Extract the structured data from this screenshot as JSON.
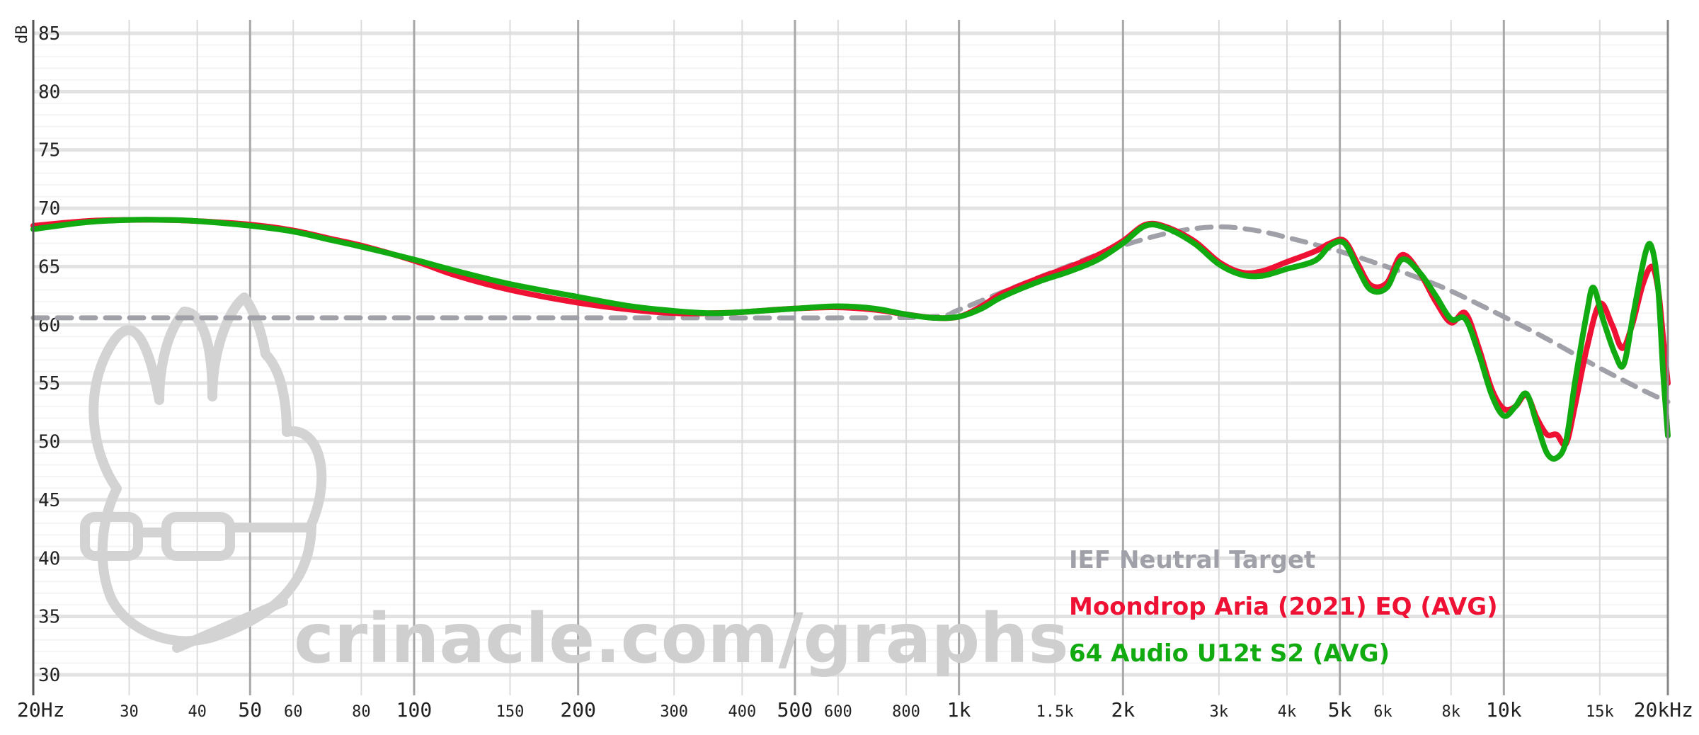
{
  "chart_data": {
    "type": "line",
    "title": "",
    "xlabel": "",
    "ylabel": "dB",
    "x_scale": "log",
    "xlim": [
      20,
      20000
    ],
    "ylim": [
      29,
      86
    ],
    "grid": true,
    "legend_position": "bottom-right",
    "y_ticks": [
      "85",
      "80",
      "75",
      "70",
      "65",
      "60",
      "55",
      "50",
      "45",
      "40",
      "35",
      "30"
    ],
    "x_ticks": [
      {
        "f": 20,
        "label": "20Hz",
        "major": true
      },
      {
        "f": 30,
        "label": "30",
        "major": false
      },
      {
        "f": 40,
        "label": "40",
        "major": false
      },
      {
        "f": 50,
        "label": "50",
        "major": true
      },
      {
        "f": 60,
        "label": "60",
        "major": false
      },
      {
        "f": 80,
        "label": "80",
        "major": false
      },
      {
        "f": 100,
        "label": "100",
        "major": true
      },
      {
        "f": 150,
        "label": "150",
        "major": false
      },
      {
        "f": 200,
        "label": "200",
        "major": true
      },
      {
        "f": 300,
        "label": "300",
        "major": false
      },
      {
        "f": 400,
        "label": "400",
        "major": false
      },
      {
        "f": 500,
        "label": "500",
        "major": true
      },
      {
        "f": 600,
        "label": "600",
        "major": false
      },
      {
        "f": 800,
        "label": "800",
        "major": false
      },
      {
        "f": 1000,
        "label": "1k",
        "major": true
      },
      {
        "f": 1500,
        "label": "1.5k",
        "major": false
      },
      {
        "f": 2000,
        "label": "2k",
        "major": true
      },
      {
        "f": 3000,
        "label": "3k",
        "major": false
      },
      {
        "f": 4000,
        "label": "4k",
        "major": false
      },
      {
        "f": 5000,
        "label": "5k",
        "major": true
      },
      {
        "f": 6000,
        "label": "6k",
        "major": false
      },
      {
        "f": 8000,
        "label": "8k",
        "major": false
      },
      {
        "f": 10000,
        "label": "10k",
        "major": true
      },
      {
        "f": 15000,
        "label": "15k",
        "major": false
      },
      {
        "f": 20000,
        "label": "20kHz",
        "major": true
      }
    ],
    "series": [
      {
        "name": "IEF Neutral Target",
        "color": "#a0a0a8",
        "dashed": true,
        "points": [
          [
            20,
            60.6
          ],
          [
            100,
            60.6
          ],
          [
            300,
            60.6
          ],
          [
            600,
            60.6
          ],
          [
            900,
            60.7
          ],
          [
            1000,
            61.3
          ],
          [
            1200,
            62.8
          ],
          [
            1500,
            64.6
          ],
          [
            2000,
            66.8
          ],
          [
            2500,
            68.0
          ],
          [
            3000,
            68.4
          ],
          [
            3500,
            68.1
          ],
          [
            4000,
            67.5
          ],
          [
            5000,
            66.3
          ],
          [
            6000,
            65.1
          ],
          [
            7000,
            64.0
          ],
          [
            8000,
            62.9
          ],
          [
            10000,
            60.7
          ],
          [
            12000,
            58.8
          ],
          [
            15000,
            56.3
          ],
          [
            18000,
            54.4
          ],
          [
            20000,
            53.4
          ]
        ]
      },
      {
        "name": "Moondrop Aria (2021) EQ (AVG)",
        "color": "#ee1133",
        "dashed": false,
        "points": [
          [
            20,
            68.5
          ],
          [
            25,
            68.9
          ],
          [
            30,
            69.0
          ],
          [
            35,
            69.0
          ],
          [
            40,
            68.9
          ],
          [
            50,
            68.6
          ],
          [
            60,
            68.1
          ],
          [
            70,
            67.4
          ],
          [
            80,
            66.8
          ],
          [
            100,
            65.5
          ],
          [
            120,
            64.2
          ],
          [
            150,
            63.0
          ],
          [
            200,
            61.9
          ],
          [
            250,
            61.3
          ],
          [
            300,
            61.0
          ],
          [
            350,
            61.0
          ],
          [
            400,
            61.1
          ],
          [
            500,
            61.4
          ],
          [
            600,
            61.5
          ],
          [
            700,
            61.3
          ],
          [
            800,
            60.9
          ],
          [
            900,
            60.6
          ],
          [
            1000,
            60.7
          ],
          [
            1100,
            61.6
          ],
          [
            1200,
            62.7
          ],
          [
            1400,
            64.0
          ],
          [
            1600,
            65.0
          ],
          [
            1800,
            66.0
          ],
          [
            2000,
            67.2
          ],
          [
            2200,
            68.6
          ],
          [
            2400,
            68.4
          ],
          [
            2700,
            67.2
          ],
          [
            3000,
            65.4
          ],
          [
            3300,
            64.5
          ],
          [
            3600,
            64.6
          ],
          [
            4000,
            65.4
          ],
          [
            4500,
            66.3
          ],
          [
            4800,
            67.0
          ],
          [
            5100,
            67.2
          ],
          [
            5400,
            65.2
          ],
          [
            5700,
            63.4
          ],
          [
            6100,
            63.6
          ],
          [
            6500,
            66.0
          ],
          [
            7000,
            64.5
          ],
          [
            7500,
            62.0
          ],
          [
            8000,
            60.2
          ],
          [
            8500,
            61.0
          ],
          [
            9000,
            58.0
          ],
          [
            9500,
            54.5
          ],
          [
            10000,
            52.8
          ],
          [
            10500,
            53.0
          ],
          [
            11000,
            54.0
          ],
          [
            11500,
            52.0
          ],
          [
            12000,
            50.6
          ],
          [
            12500,
            50.6
          ],
          [
            13000,
            49.8
          ],
          [
            13500,
            53.0
          ],
          [
            14200,
            58.0
          ],
          [
            15000,
            61.8
          ],
          [
            15800,
            60.0
          ],
          [
            16500,
            58.0
          ],
          [
            17200,
            60.0
          ],
          [
            18000,
            63.5
          ],
          [
            18700,
            65.0
          ],
          [
            19200,
            63.0
          ],
          [
            19600,
            59.0
          ],
          [
            20000,
            55.0
          ]
        ]
      },
      {
        "name": "64 Audio U12t S2 (AVG)",
        "color": "#11aa11",
        "dashed": false,
        "points": [
          [
            20,
            68.2
          ],
          [
            25,
            68.8
          ],
          [
            30,
            69.0
          ],
          [
            35,
            69.0
          ],
          [
            40,
            68.9
          ],
          [
            50,
            68.5
          ],
          [
            60,
            68.0
          ],
          [
            70,
            67.3
          ],
          [
            80,
            66.7
          ],
          [
            100,
            65.6
          ],
          [
            120,
            64.6
          ],
          [
            150,
            63.5
          ],
          [
            200,
            62.4
          ],
          [
            250,
            61.6
          ],
          [
            300,
            61.2
          ],
          [
            350,
            61.0
          ],
          [
            400,
            61.1
          ],
          [
            500,
            61.4
          ],
          [
            600,
            61.6
          ],
          [
            700,
            61.4
          ],
          [
            800,
            60.9
          ],
          [
            900,
            60.6
          ],
          [
            1000,
            60.7
          ],
          [
            1100,
            61.4
          ],
          [
            1200,
            62.4
          ],
          [
            1400,
            63.7
          ],
          [
            1600,
            64.6
          ],
          [
            1800,
            65.6
          ],
          [
            2000,
            67.0
          ],
          [
            2200,
            68.5
          ],
          [
            2400,
            68.3
          ],
          [
            2700,
            67.0
          ],
          [
            3000,
            65.2
          ],
          [
            3300,
            64.3
          ],
          [
            3600,
            64.2
          ],
          [
            4000,
            64.8
          ],
          [
            4500,
            65.5
          ],
          [
            4800,
            66.8
          ],
          [
            5100,
            67.0
          ],
          [
            5400,
            64.8
          ],
          [
            5700,
            63.0
          ],
          [
            6100,
            63.2
          ],
          [
            6500,
            65.6
          ],
          [
            7000,
            64.5
          ],
          [
            7500,
            62.5
          ],
          [
            8000,
            60.5
          ],
          [
            8500,
            60.5
          ],
          [
            9000,
            57.5
          ],
          [
            9500,
            54.0
          ],
          [
            10000,
            52.2
          ],
          [
            10500,
            53.0
          ],
          [
            11000,
            54.1
          ],
          [
            11500,
            51.5
          ],
          [
            12000,
            49.0
          ],
          [
            12500,
            48.6
          ],
          [
            13000,
            50.0
          ],
          [
            13500,
            55.0
          ],
          [
            14200,
            61.0
          ],
          [
            14600,
            63.2
          ],
          [
            15200,
            60.5
          ],
          [
            16000,
            57.5
          ],
          [
            16600,
            56.6
          ],
          [
            17300,
            61.0
          ],
          [
            18200,
            66.2
          ],
          [
            18700,
            66.6
          ],
          [
            19200,
            63.0
          ],
          [
            19600,
            56.0
          ],
          [
            20000,
            50.5
          ]
        ]
      }
    ]
  },
  "watermark": {
    "text": "crinacle.com/graphs",
    "icon": "crinacle-mascot-icon"
  }
}
